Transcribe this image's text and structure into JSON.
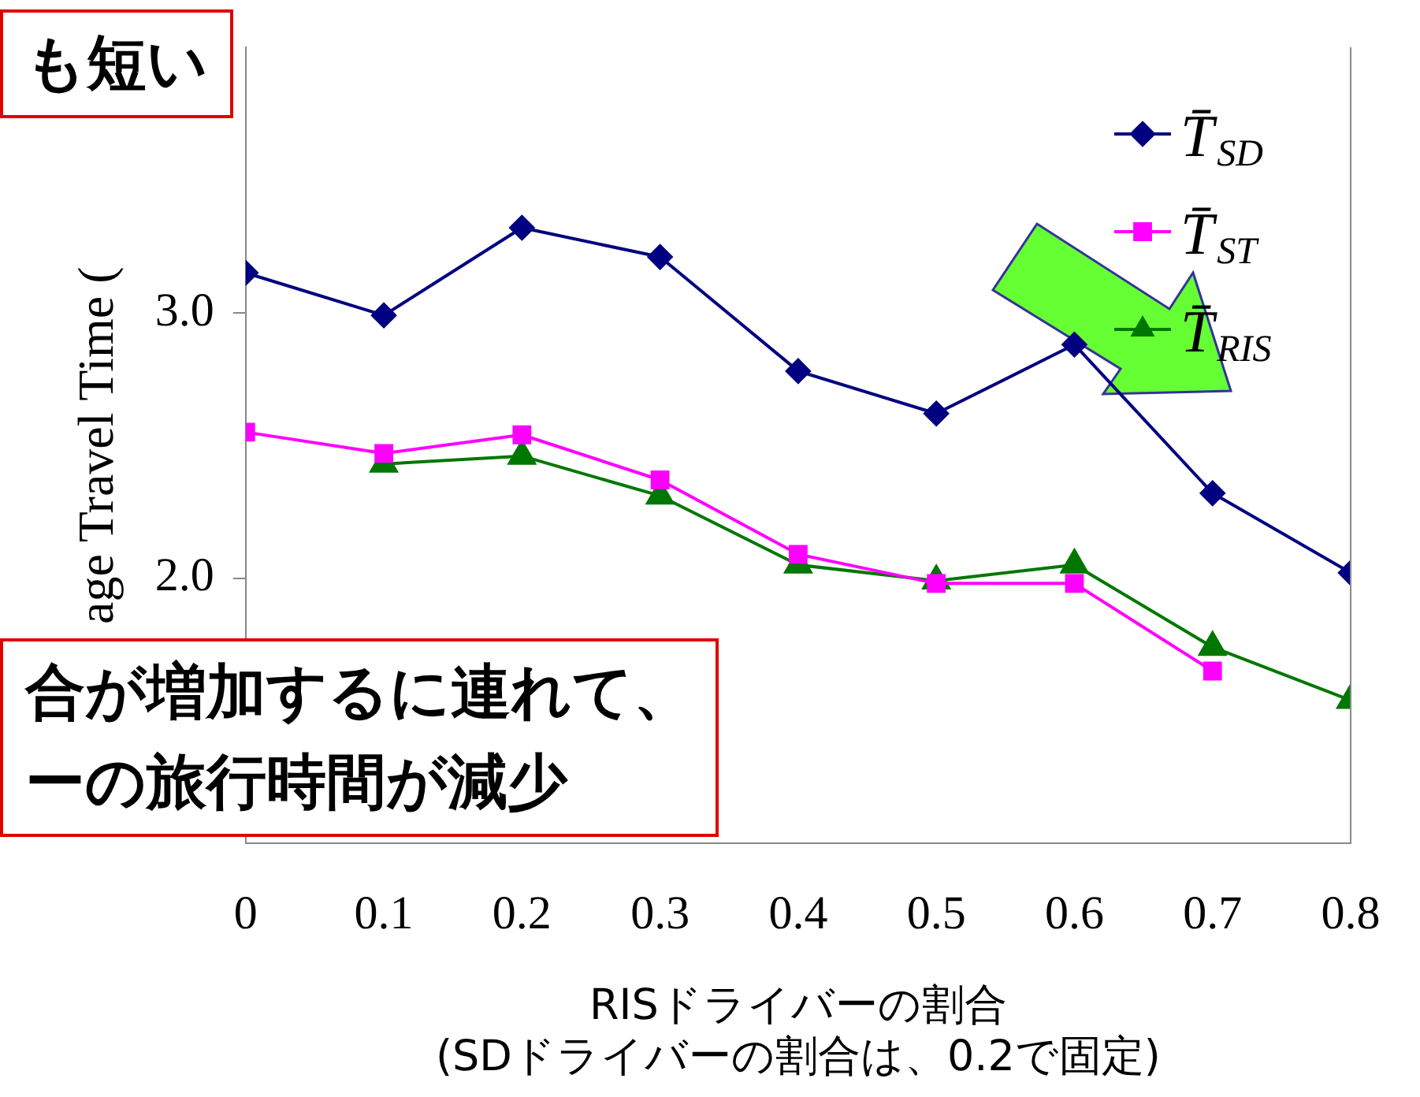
{
  "chart_data": {
    "type": "line",
    "xlabel": "RISドライバーの割合\n(SDドライバーの割合は、0.2で固定)",
    "ylabel": "age Travel Time (",
    "x": [
      0,
      0.1,
      0.2,
      0.3,
      0.4,
      0.5,
      0.6,
      0.7,
      0.8
    ],
    "series": [
      {
        "name": "T̄$_{SD}$",
        "color": "#000080",
        "marker": "diamond",
        "values": [
          3.15,
          2.99,
          3.32,
          3.21,
          2.78,
          2.62,
          2.88,
          2.32,
          2.02
        ]
      },
      {
        "name": "T̄$_{ST}$",
        "color": "#ff00ff",
        "marker": "square",
        "values": [
          2.55,
          2.47,
          2.54,
          2.37,
          2.09,
          1.98,
          1.98,
          1.65,
          null
        ]
      },
      {
        "name": "T̄$_{RIS}$",
        "color": "#007700",
        "marker": "triangle",
        "values": [
          null,
          2.43,
          2.46,
          2.31,
          2.05,
          1.99,
          2.05,
          1.74,
          1.54
        ]
      }
    ],
    "xlim": [
      0,
      0.8
    ],
    "xticks": [
      0,
      0.1,
      0.2,
      0.3,
      0.4,
      0.5,
      0.6,
      0.7,
      0.8
    ],
    "ylim": [
      1,
      4
    ],
    "yticks": [
      {
        "value": 2,
        "label": "2.0"
      },
      {
        "value": 3,
        "label": "3.0"
      }
    ],
    "grid": false,
    "legend": "top right",
    "line_style": "solid",
    "annotations": [
      "も短い",
      "合が増加するに連れて、",
      "ーの旅行時間が減少"
    ]
  }
}
